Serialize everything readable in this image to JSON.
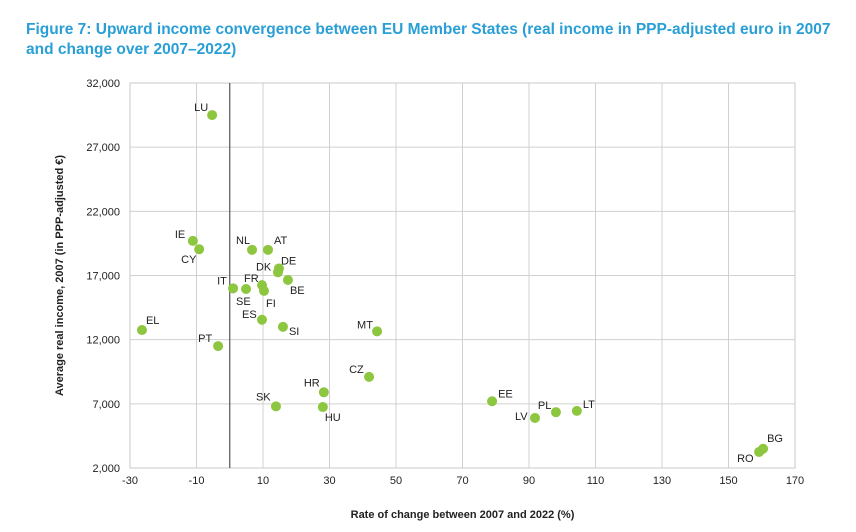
{
  "chart_data": {
    "type": "scatter",
    "title": "Figure 7: Upward income convergence between EU Member States (real income in PPP-adjusted euro in 2007 and change over 2007–2022)",
    "xlabel": "Rate of change between 2007 and 2022 (%)",
    "ylabel": "Average real income, 2007 (in PPP-adjusted €)",
    "xlim": [
      -30,
      170
    ],
    "ylim": [
      2000,
      32000
    ],
    "xticks": [
      -30,
      -10,
      10,
      30,
      50,
      70,
      90,
      110,
      130,
      150,
      170
    ],
    "yticks": [
      2000,
      7000,
      12000,
      17000,
      22000,
      27000,
      32000
    ],
    "ytick_labels": [
      "2,000",
      "7,000",
      "12,000",
      "17,000",
      "22,000",
      "27,000",
      "32,000"
    ],
    "grid": true,
    "reference_line_x": 0,
    "point_color": "#8dc63f",
    "points": [
      {
        "label": "LU",
        "x": -5.3,
        "y": 29500
      },
      {
        "label": "IE",
        "x": -11.1,
        "y": 19700
      },
      {
        "label": "CY",
        "x": -9.2,
        "y": 19050
      },
      {
        "label": "NL",
        "x": 6.7,
        "y": 19000
      },
      {
        "label": "AT",
        "x": 11.5,
        "y": 19000
      },
      {
        "label": "DE",
        "x": 14.8,
        "y": 17550
      },
      {
        "label": "DK",
        "x": 14.5,
        "y": 17250
      },
      {
        "label": "BE",
        "x": 17.5,
        "y": 16650
      },
      {
        "label": "IT",
        "x": 1.0,
        "y": 16000
      },
      {
        "label": "FR",
        "x": 9.7,
        "y": 16250
      },
      {
        "label": "SE",
        "x": 4.9,
        "y": 15950
      },
      {
        "label": "FI",
        "x": 10.3,
        "y": 15800
      },
      {
        "label": "ES",
        "x": 9.7,
        "y": 13550
      },
      {
        "label": "SI",
        "x": 16.0,
        "y": 13000
      },
      {
        "label": "MT",
        "x": 44.3,
        "y": 12650
      },
      {
        "label": "EL",
        "x": -26.4,
        "y": 12750
      },
      {
        "label": "PT",
        "x": -3.5,
        "y": 11500
      },
      {
        "label": "CZ",
        "x": 41.9,
        "y": 9100
      },
      {
        "label": "HR",
        "x": 28.3,
        "y": 7900
      },
      {
        "label": "HU",
        "x": 28.0,
        "y": 6750
      },
      {
        "label": "SK",
        "x": 13.9,
        "y": 6800
      },
      {
        "label": "EE",
        "x": 78.9,
        "y": 7200
      },
      {
        "label": "LV",
        "x": 91.8,
        "y": 5900
      },
      {
        "label": "PL",
        "x": 98.1,
        "y": 6350
      },
      {
        "label": "LT",
        "x": 104.4,
        "y": 6450
      },
      {
        "label": "RO",
        "x": 159.2,
        "y": 3250
      },
      {
        "label": "BG",
        "x": 160.4,
        "y": 3500
      }
    ]
  }
}
